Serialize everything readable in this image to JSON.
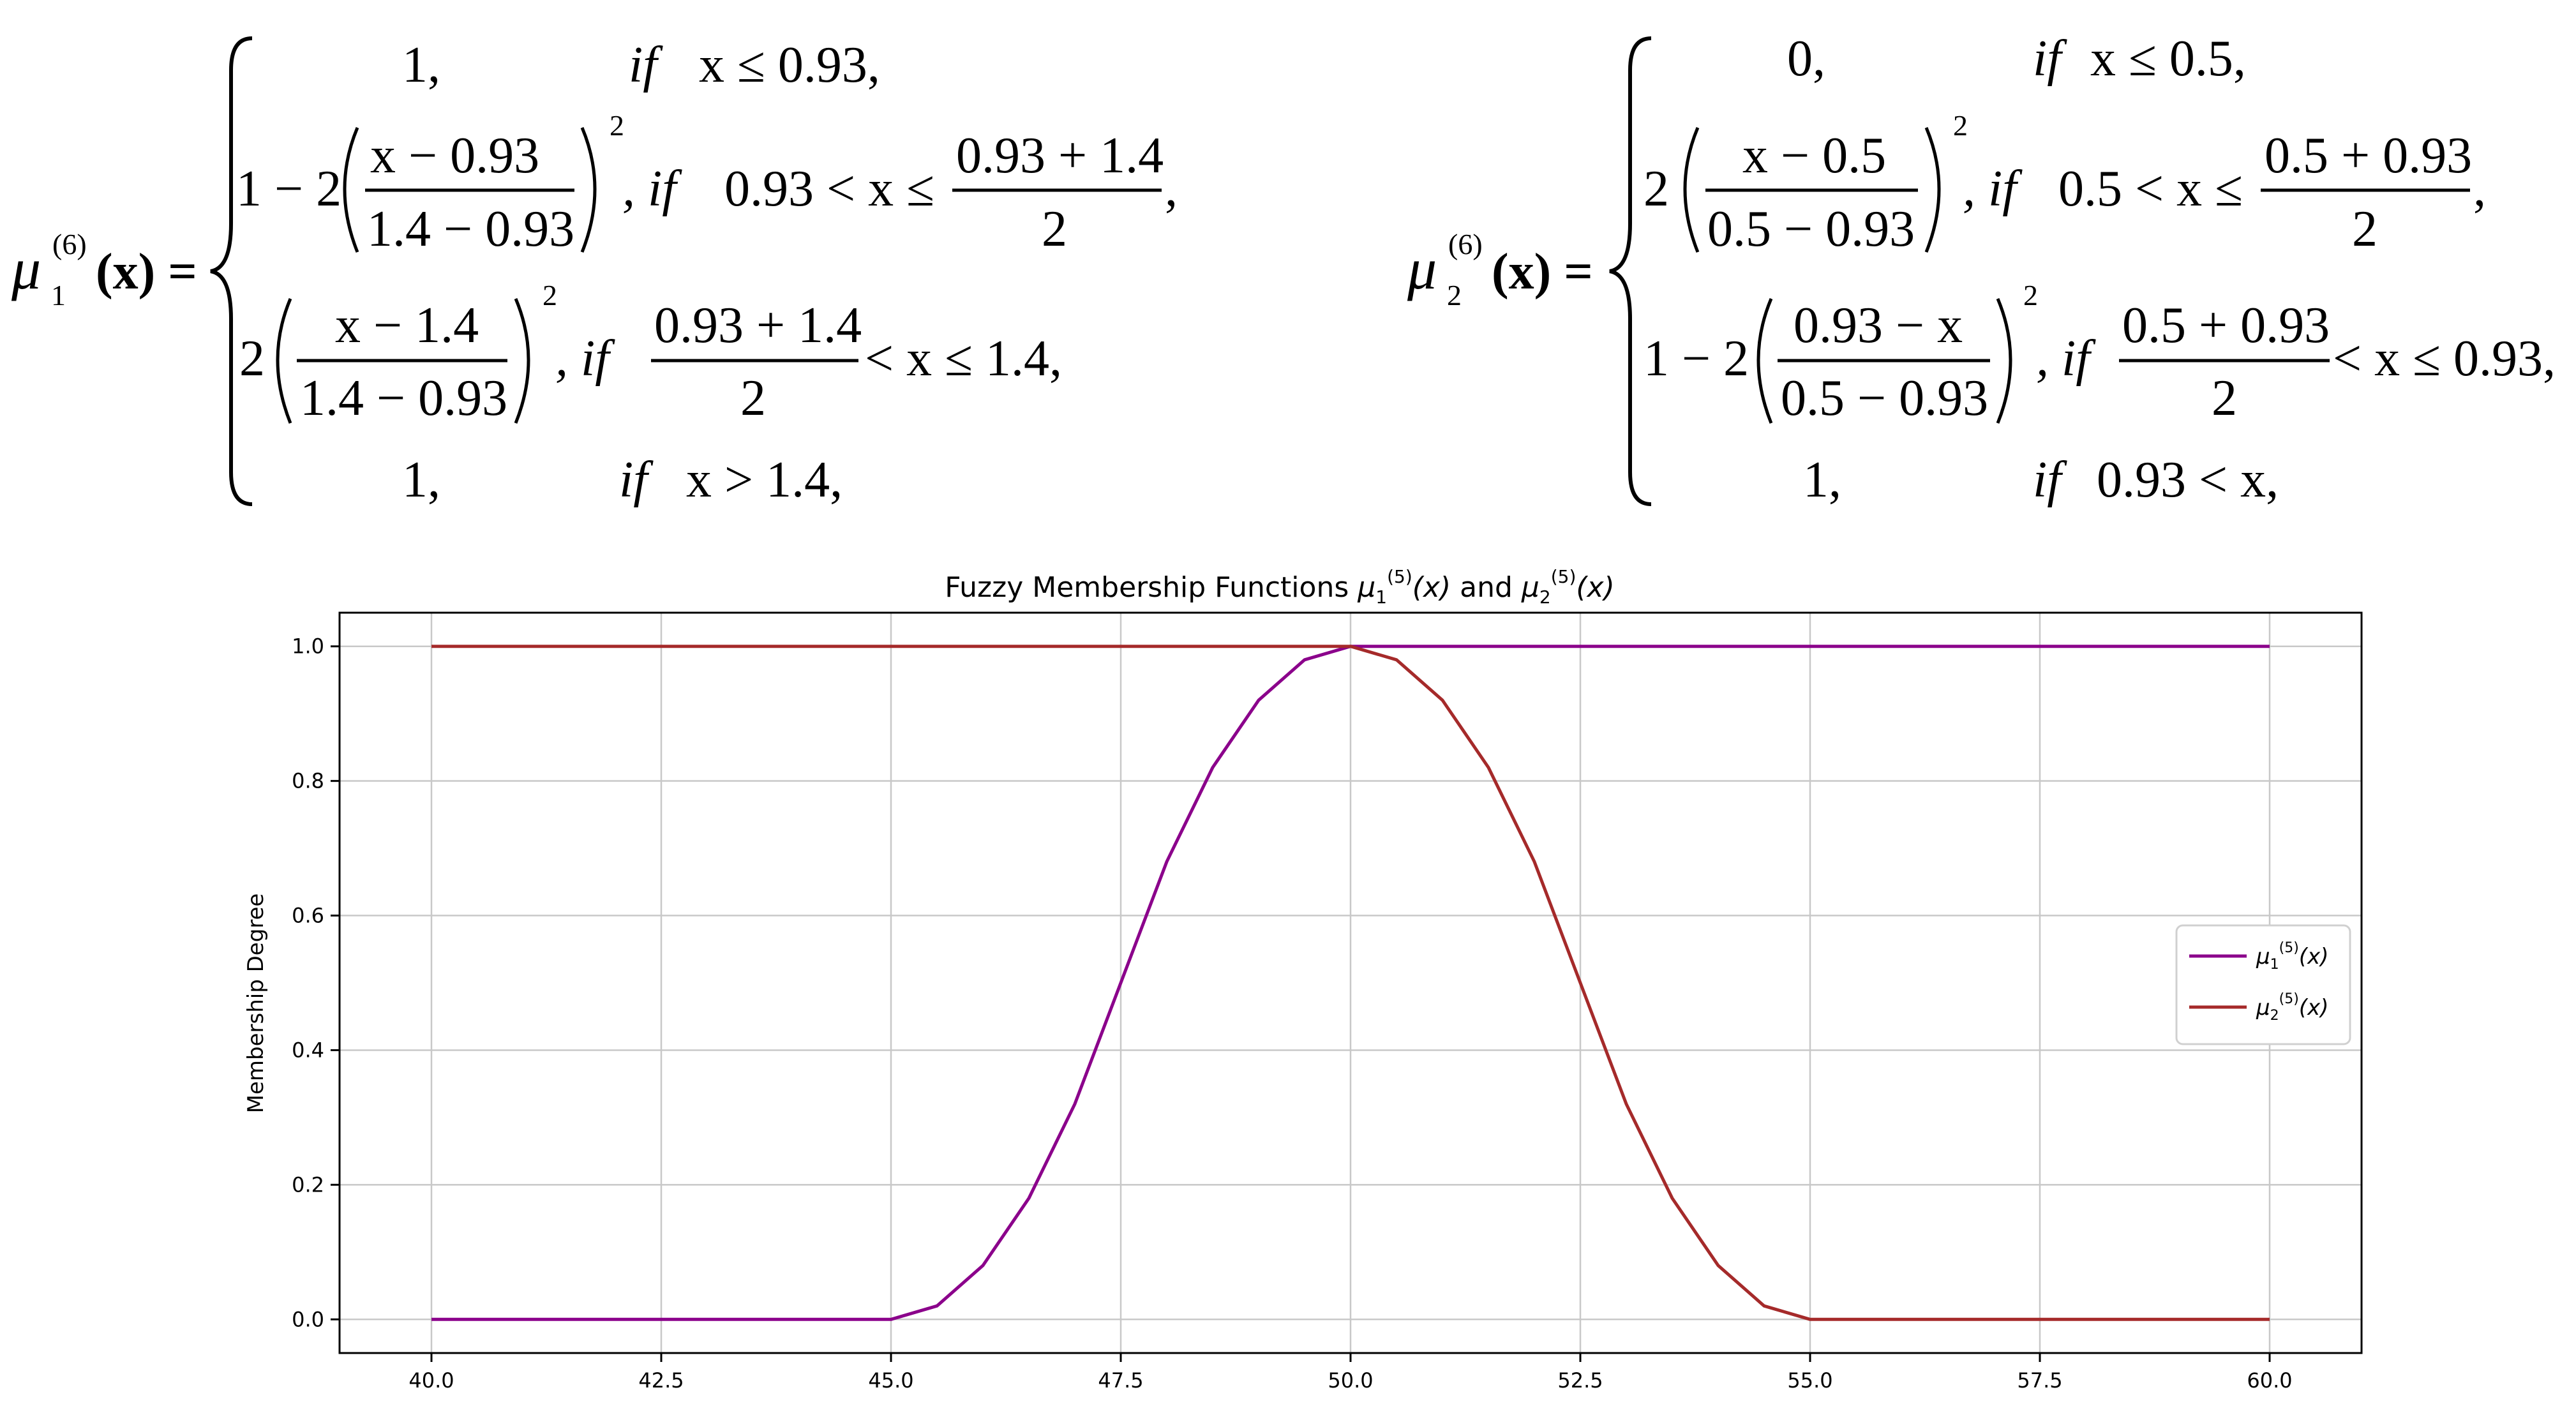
{
  "formulas": {
    "mu1": {
      "lhs_mu": "μ",
      "lhs_sub": "1",
      "lhs_sup": "(6)",
      "lhs_arg": "(x) =",
      "rows": [
        {
          "a": "1,",
          "b": "if",
          "c": "x ≤ 0.93,"
        },
        {
          "pre": "1 − 2",
          "num": "x − 0.93",
          "den": "1.4 − 0.93",
          "pow": "2",
          "b": ", if",
          "c": "0.93 < x ≤",
          "fnum": "0.93 + 1.4",
          "fden": "2",
          "end": ","
        },
        {
          "pre": "2",
          "num": "x − 1.4",
          "den": "1.4 − 0.93",
          "pow": "2",
          "b": ", if",
          "fnum": "0.93 + 1.4",
          "fden": "2",
          "c": "< x ≤ 1.4,"
        },
        {
          "a": "1,",
          "b": "if",
          "c": "x > 1.4,"
        }
      ]
    },
    "mu2": {
      "lhs_mu": "μ",
      "lhs_sub": "2",
      "lhs_sup": "(6)",
      "lhs_arg": "(x) =",
      "rows": [
        {
          "a": "0,",
          "b": "if",
          "c": "x ≤ 0.5,"
        },
        {
          "pre": "2",
          "num": "x − 0.5",
          "den": "0.5 − 0.93",
          "pow": "2",
          "b": ", if",
          "c": "0.5 < x ≤",
          "fnum": "0.5 + 0.93",
          "fden": "2",
          "end": ","
        },
        {
          "pre": "1 − 2",
          "num": "0.93 − x",
          "den": "0.5 − 0.93",
          "pow": "2",
          "b": ", if",
          "fnum": "0.5 + 0.93",
          "fden": "2",
          "c": "< x ≤ 0.93,"
        },
        {
          "a": "1,",
          "b": "if",
          "c": "0.93 < x,"
        }
      ]
    }
  },
  "chart_data": {
    "type": "line",
    "title": "Fuzzy Membership Functions μ1(5)(x) and μ2(5)(x)",
    "title_parts": {
      "prefix": "Fuzzy Membership Functions ",
      "mu": "μ",
      "sub1": "1",
      "sub2": "2",
      "sup": "(5)",
      "arg": "(x)",
      "and": " and "
    },
    "xlabel": "",
    "ylabel": "Membership Degree",
    "xlim": [
      39.0,
      61.0
    ],
    "ylim": [
      -0.05,
      1.05
    ],
    "xticks": [
      "40.0",
      "42.5",
      "45.0",
      "47.5",
      "50.0",
      "52.5",
      "55.0",
      "57.5",
      "60.0"
    ],
    "xtick_values": [
      40.0,
      42.5,
      45.0,
      47.5,
      50.0,
      52.5,
      55.0,
      57.5,
      60.0
    ],
    "yticks": [
      "0.0",
      "0.2",
      "0.4",
      "0.6",
      "0.8",
      "1.0"
    ],
    "ytick_values": [
      0.0,
      0.2,
      0.4,
      0.6,
      0.8,
      1.0
    ],
    "grid": true,
    "legend_position": "center-right",
    "series": [
      {
        "name": "μ1(5)(x)",
        "legend": {
          "mu": "μ",
          "sub": "1",
          "sup": "(5)",
          "arg": "(x)"
        },
        "color": "#8b008b",
        "x": [
          40,
          42.5,
          45,
          45.5,
          46,
          46.5,
          47,
          47.5,
          48,
          48.5,
          49,
          49.5,
          50,
          52.5,
          55,
          57.5,
          60
        ],
        "y": [
          0,
          0,
          0,
          0.02,
          0.08,
          0.18,
          0.32,
          0.5,
          0.68,
          0.82,
          0.92,
          0.98,
          1.0,
          1.0,
          1.0,
          1.0,
          1.0
        ]
      },
      {
        "name": "μ2(5)(x)",
        "legend": {
          "mu": "μ",
          "sub": "2",
          "sup": "(5)",
          "arg": "(x)"
        },
        "color": "#a52a2a",
        "x": [
          40,
          42.5,
          45,
          47.5,
          50,
          50.5,
          51,
          51.5,
          52,
          52.5,
          53,
          53.5,
          54,
          54.5,
          55,
          57.5,
          60
        ],
        "y": [
          1.0,
          1.0,
          1.0,
          1.0,
          1.0,
          0.98,
          0.92,
          0.82,
          0.68,
          0.5,
          0.32,
          0.18,
          0.08,
          0.02,
          0,
          0,
          0
        ]
      }
    ]
  }
}
